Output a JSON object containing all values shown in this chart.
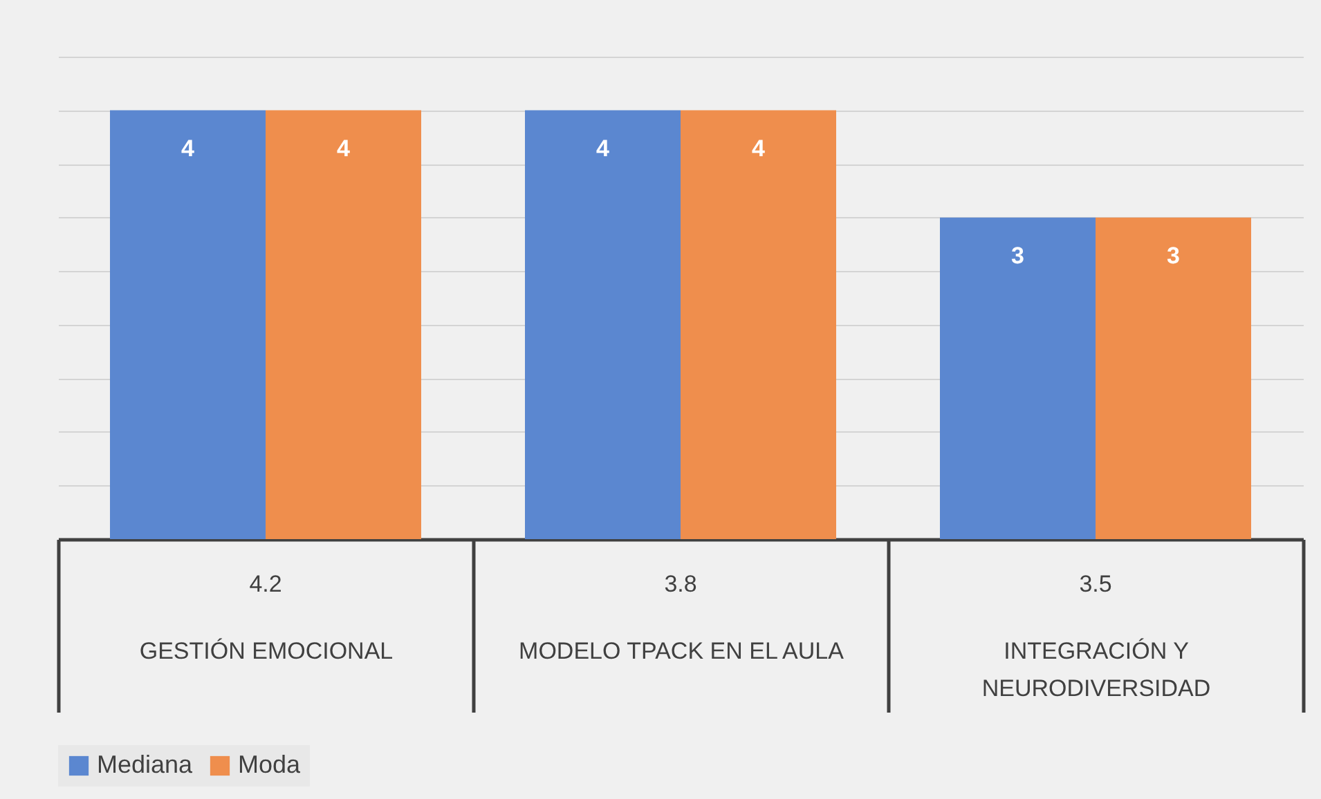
{
  "chart_data": {
    "type": "bar",
    "categories": [
      "GESTIÓN EMOCIONAL",
      "MODELO TPACK EN EL AULA",
      "INTEGRACIÓN Y NEURODIVERSIDAD"
    ],
    "series": [
      {
        "name": "Mediana",
        "color": "#5b87d0",
        "values": [
          4,
          4,
          3
        ]
      },
      {
        "name": "Moda",
        "color": "#ef8e4d",
        "values": [
          4,
          4,
          3
        ]
      }
    ],
    "annotations": [
      "4.2",
      "3.8",
      "3.5"
    ],
    "ylim": [
      0,
      4.5
    ],
    "yticks": [
      {
        "value": 0,
        "label": null
      },
      {
        "value": 0.5,
        "label": null
      },
      {
        "value": 1,
        "label": null
      },
      {
        "value": 1.5,
        "label": null
      },
      {
        "value": 2,
        "label": null
      },
      {
        "value": 2.5,
        "label": null
      },
      {
        "value": 3,
        "label": null
      },
      {
        "value": 3.5,
        "label": null
      },
      {
        "value": 4,
        "label": null
      },
      {
        "value": 4.5,
        "label": null
      }
    ],
    "data_labels": true,
    "grid": "y",
    "legend": "bottom",
    "tick_labels": "x"
  }
}
